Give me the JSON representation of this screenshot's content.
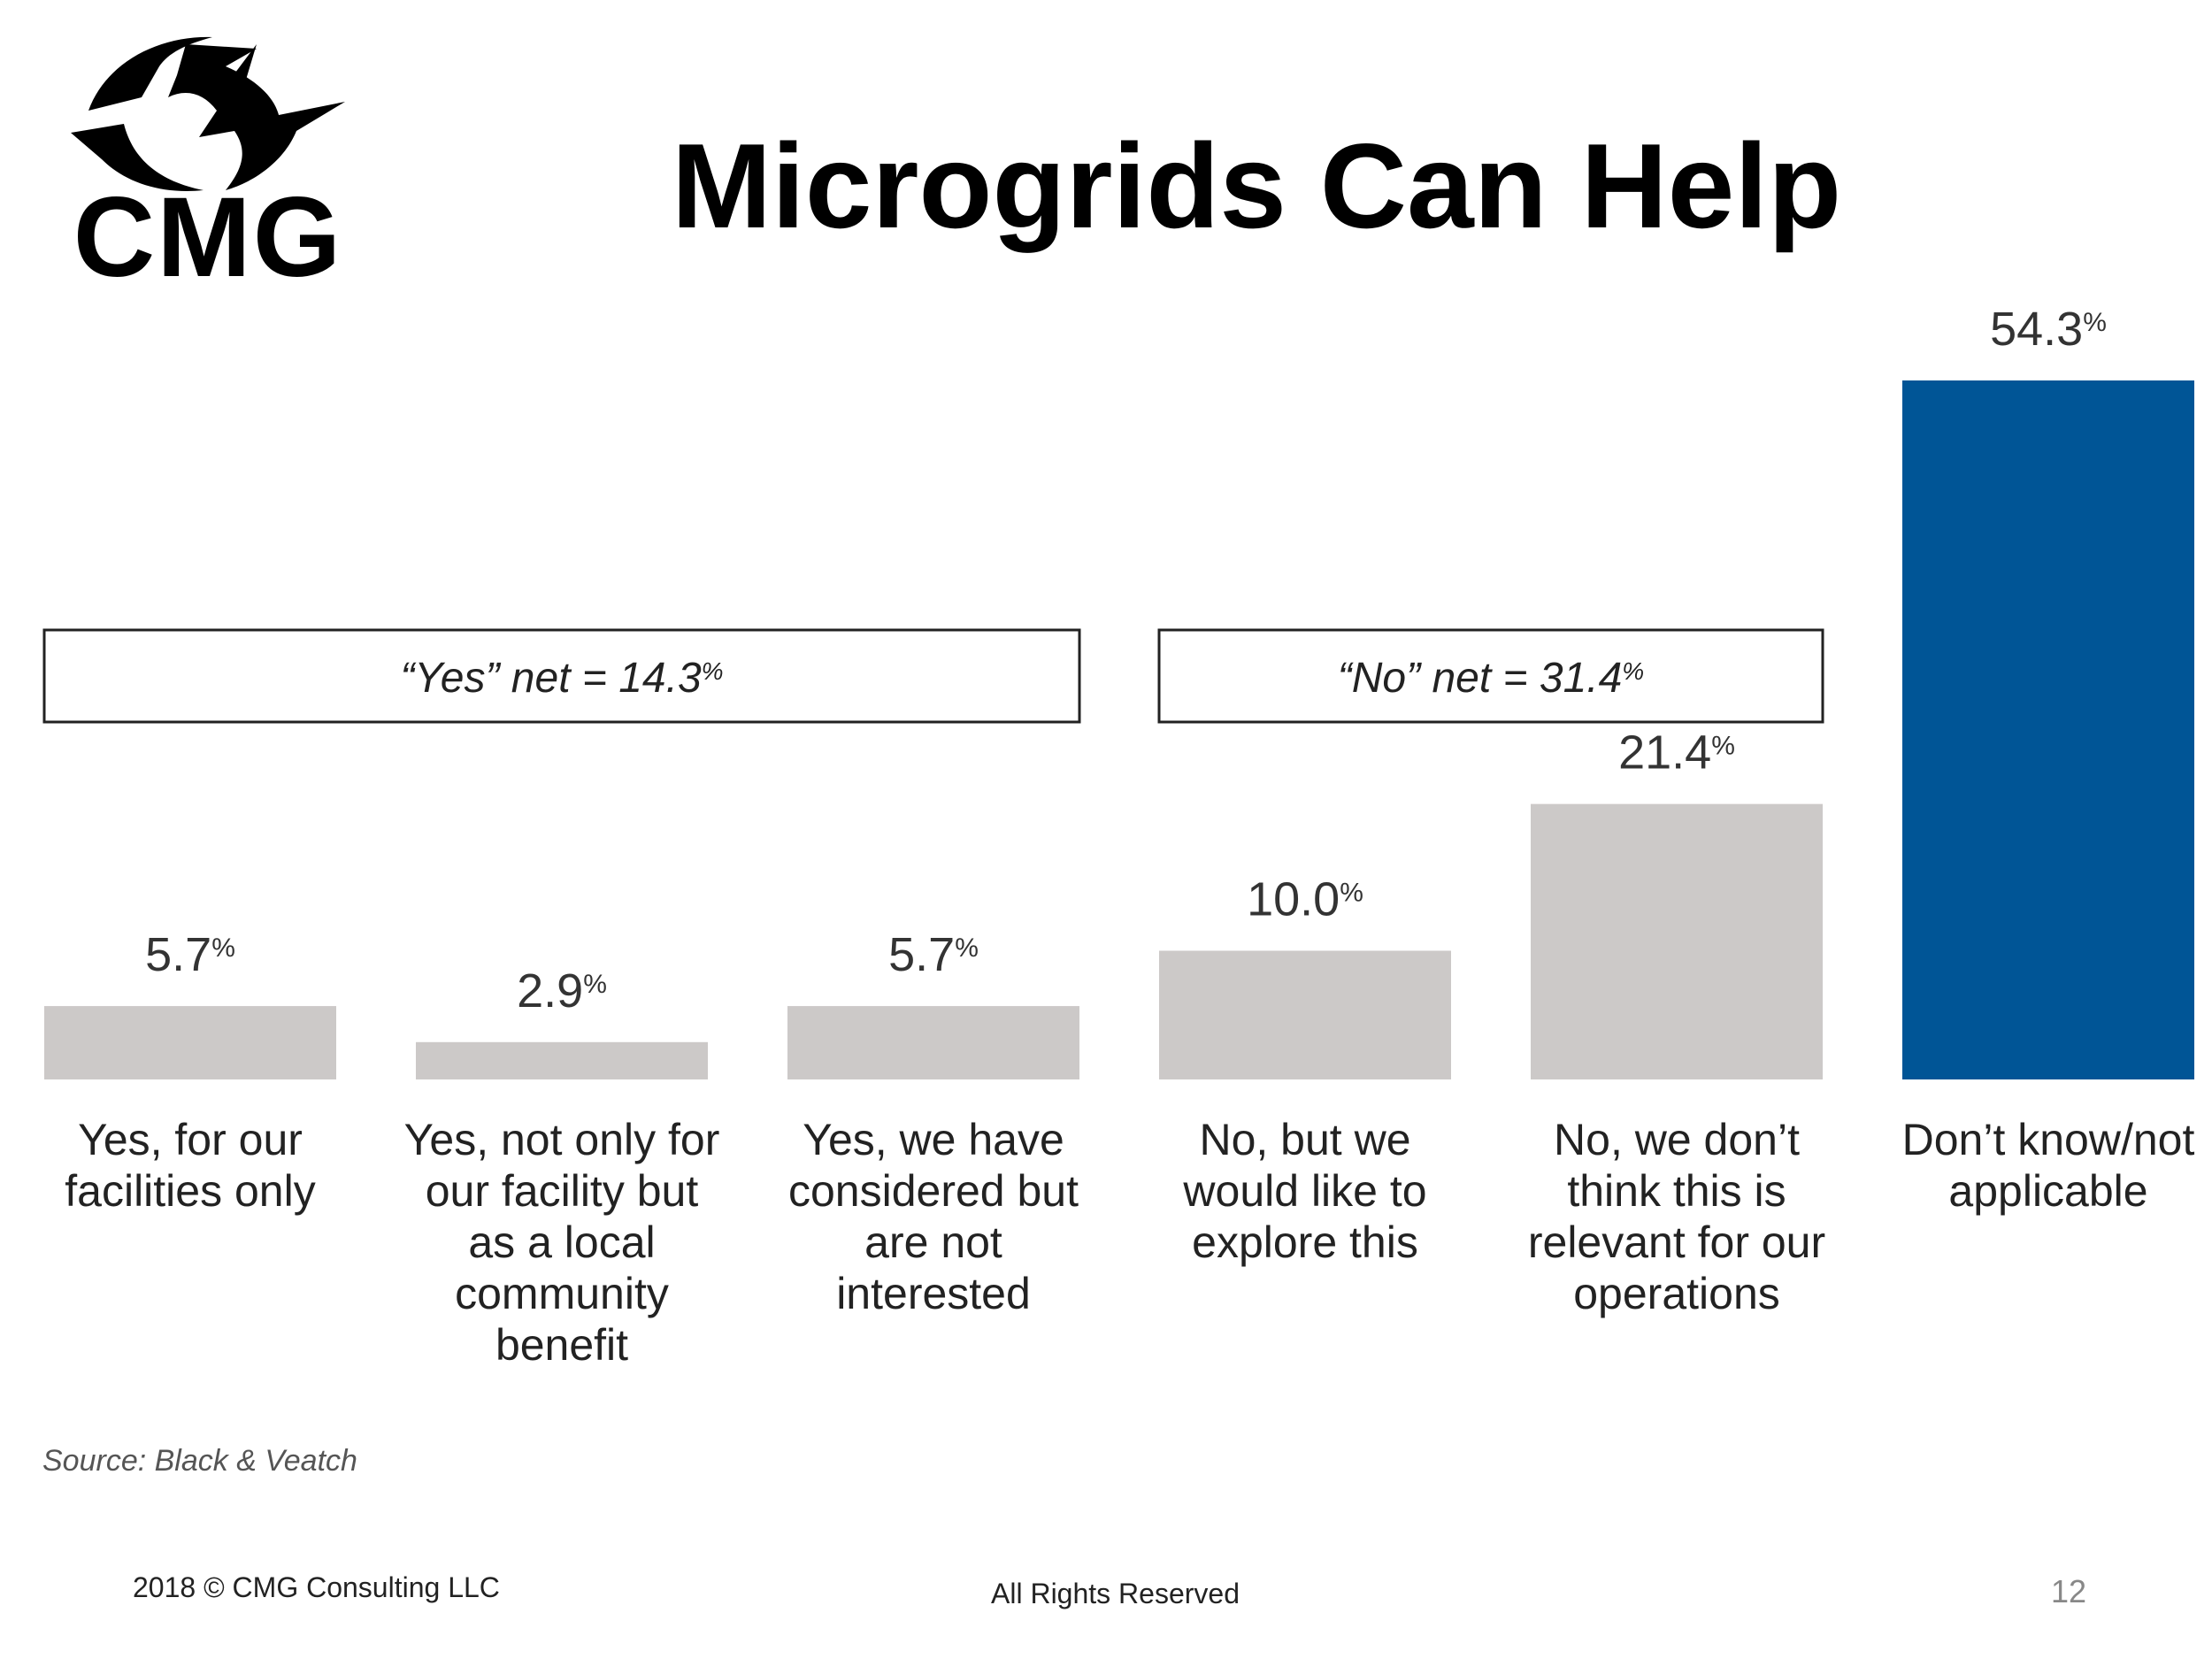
{
  "logo": {
    "text": "CMG"
  },
  "page": {
    "title": "Microgrids Can Help",
    "number": "12"
  },
  "source": "Source: Black & Veatch",
  "footer": {
    "copyright": "2018 © CMG Consulting LLC",
    "rights": "All Rights Reserved"
  },
  "colors": {
    "bar": "#ccc9c8",
    "highlight": "#005596",
    "text": "#333333"
  },
  "chart_data": {
    "type": "bar",
    "categories": [
      [
        "Yes, for our",
        "facilities only"
      ],
      [
        "Yes, not only for",
        "our facility but",
        "as a local",
        "community",
        "benefit"
      ],
      [
        "Yes, we have",
        "considered but",
        "are not",
        "interested"
      ],
      [
        "No, but we",
        "would like to",
        "explore this"
      ],
      [
        "No, we don’t",
        "think this is",
        "relevant for our",
        "operations"
      ],
      [
        "Don’t know/not",
        "applicable"
      ]
    ],
    "values": [
      5.7,
      2.9,
      5.7,
      10.0,
      21.4,
      54.3
    ],
    "value_labels": [
      "5.7",
      "2.9",
      "5.7",
      "10.0",
      "21.4",
      "54.3"
    ],
    "unit": "%",
    "highlight_index": 5,
    "ylim": [
      0,
      54.3
    ],
    "groups": [
      {
        "label": "“Yes” net = 14.3",
        "unit": "%",
        "from": 0,
        "to": 2
      },
      {
        "label": "“No” net = 31.4",
        "unit": "%",
        "from": 3,
        "to": 4
      }
    ]
  }
}
